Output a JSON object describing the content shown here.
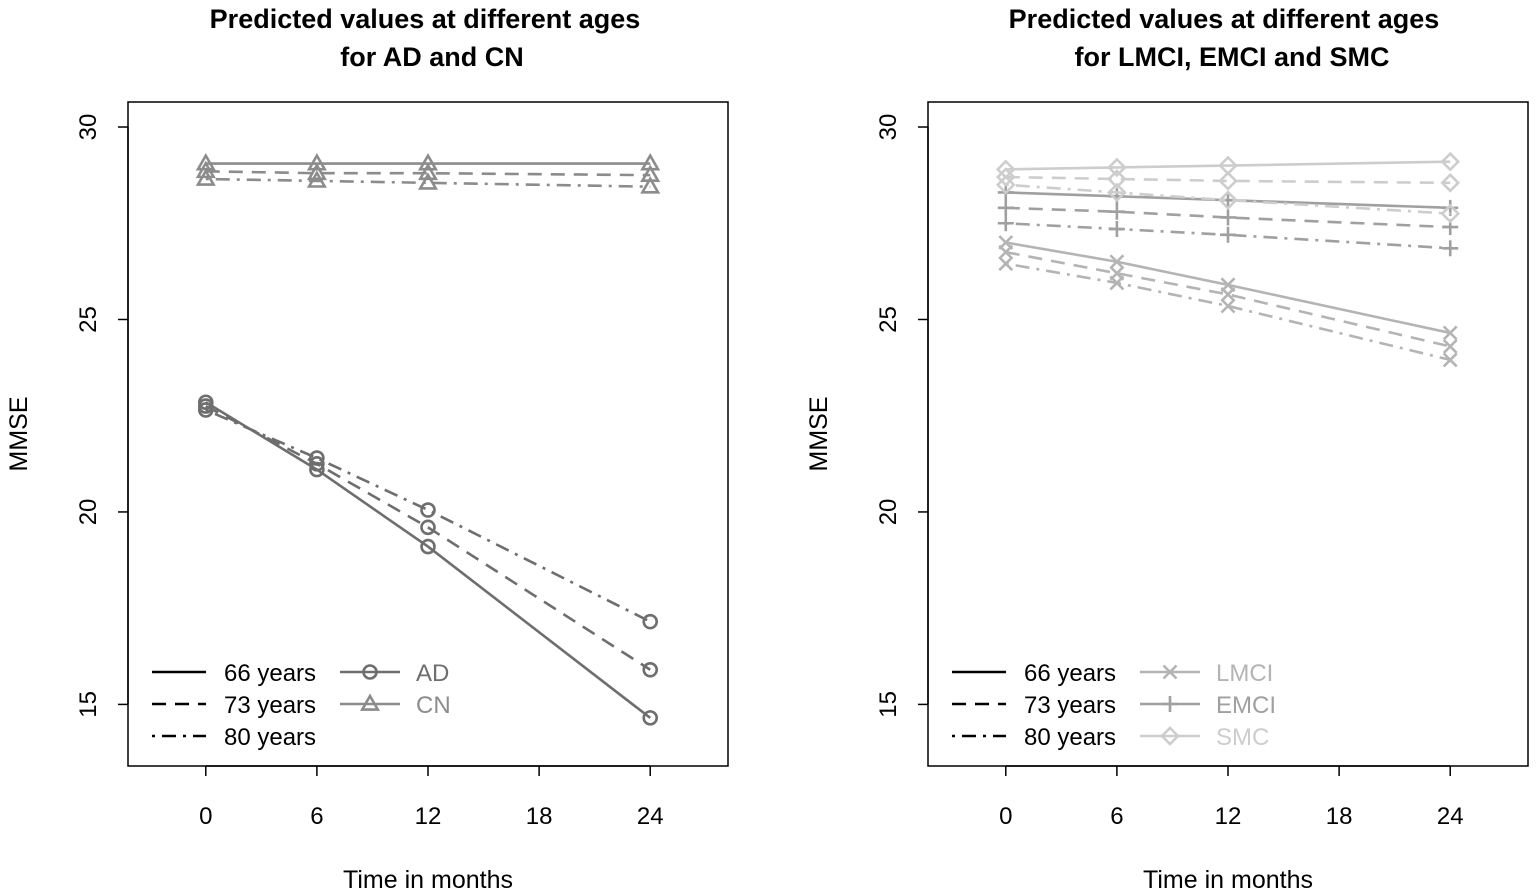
{
  "chart_data": [
    {
      "type": "line",
      "title": [
        "Predicted values at different ages",
        "for AD and CN"
      ],
      "xlabel": "Time in months",
      "ylabel": "MMSE",
      "x": [
        0,
        6,
        12,
        24
      ],
      "xticks": [
        0,
        6,
        12,
        18,
        24
      ],
      "xtick_labels": [
        "0",
        "6",
        "12",
        "18",
        "24"
      ],
      "yticks": [
        15,
        20,
        25,
        30
      ],
      "ytick_labels": [
        "15",
        "20",
        "25",
        "30"
      ],
      "xlim": [
        -4.2,
        28.2
      ],
      "ylim": [
        13.4,
        30.65
      ],
      "legend_position": "bottom-left",
      "age_legend": [
        {
          "label": "66 years",
          "linestyle": "solid"
        },
        {
          "label": "73 years",
          "linestyle": "dashed"
        },
        {
          "label": "80 years",
          "linestyle": "dashdot"
        }
      ],
      "group_legend": [
        {
          "label": "AD",
          "marker": "circle",
          "color": "#6e6e6e"
        },
        {
          "label": "CN",
          "marker": "triangle",
          "color": "#8c8c8c"
        }
      ],
      "series": [
        {
          "name": "AD 66 years",
          "group": "AD",
          "age": "66 years",
          "linestyle": "solid",
          "marker": "circle",
          "color": "#6e6e6e",
          "values": [
            22.85,
            21.1,
            19.1,
            14.65
          ]
        },
        {
          "name": "AD 73 years",
          "group": "AD",
          "age": "73 years",
          "linestyle": "dashed",
          "marker": "circle",
          "color": "#6e6e6e",
          "values": [
            22.75,
            21.25,
            19.6,
            15.9
          ]
        },
        {
          "name": "AD 80 years",
          "group": "AD",
          "age": "80 years",
          "linestyle": "dashdot",
          "marker": "circle",
          "color": "#6e6e6e",
          "values": [
            22.65,
            21.4,
            20.05,
            17.15
          ]
        },
        {
          "name": "CN 66 years",
          "group": "CN",
          "age": "66 years",
          "linestyle": "solid",
          "marker": "triangle",
          "color": "#8c8c8c",
          "values": [
            29.05,
            29.05,
            29.05,
            29.05
          ]
        },
        {
          "name": "CN 73 years",
          "group": "CN",
          "age": "73 years",
          "linestyle": "dashed",
          "marker": "triangle",
          "color": "#8c8c8c",
          "values": [
            28.85,
            28.8,
            28.8,
            28.75
          ]
        },
        {
          "name": "CN 80 years",
          "group": "CN",
          "age": "80 years",
          "linestyle": "dashdot",
          "marker": "triangle",
          "color": "#8c8c8c",
          "values": [
            28.65,
            28.6,
            28.55,
            28.45
          ]
        }
      ]
    },
    {
      "type": "line",
      "title": [
        "Predicted values at different ages",
        "for LMCI, EMCI and SMC"
      ],
      "xlabel": "Time in months",
      "ylabel": "MMSE",
      "x": [
        0,
        6,
        12,
        24
      ],
      "xticks": [
        0,
        6,
        12,
        18,
        24
      ],
      "xtick_labels": [
        "0",
        "6",
        "12",
        "18",
        "24"
      ],
      "yticks": [
        15,
        20,
        25,
        30
      ],
      "ytick_labels": [
        "15",
        "20",
        "25",
        "30"
      ],
      "xlim": [
        -4.2,
        28.2
      ],
      "ylim": [
        13.4,
        30.65
      ],
      "legend_position": "bottom-left",
      "age_legend": [
        {
          "label": "66 years",
          "linestyle": "solid"
        },
        {
          "label": "73 years",
          "linestyle": "dashed"
        },
        {
          "label": "80 years",
          "linestyle": "dashdot"
        }
      ],
      "group_legend": [
        {
          "label": "LMCI",
          "marker": "x",
          "color": "#b4b4b4"
        },
        {
          "label": "EMCI",
          "marker": "plus",
          "color": "#a0a0a0"
        },
        {
          "label": "SMC",
          "marker": "diamond",
          "color": "#cdcdcd"
        }
      ],
      "series": [
        {
          "name": "LMCI 66 years",
          "group": "LMCI",
          "age": "66 years",
          "linestyle": "solid",
          "marker": "x",
          "color": "#b4b4b4",
          "values": [
            27.0,
            26.5,
            25.9,
            24.65
          ]
        },
        {
          "name": "LMCI 73 years",
          "group": "LMCI",
          "age": "73 years",
          "linestyle": "dashed",
          "marker": "x",
          "color": "#b4b4b4",
          "values": [
            26.75,
            26.2,
            25.65,
            24.3
          ]
        },
        {
          "name": "LMCI 80 years",
          "group": "LMCI",
          "age": "80 years",
          "linestyle": "dashdot",
          "marker": "x",
          "color": "#b4b4b4",
          "values": [
            26.45,
            25.95,
            25.35,
            23.95
          ]
        },
        {
          "name": "EMCI 66 years",
          "group": "EMCI",
          "age": "66 years",
          "linestyle": "solid",
          "marker": "plus",
          "color": "#a0a0a0",
          "values": [
            28.3,
            28.2,
            28.1,
            27.9
          ]
        },
        {
          "name": "EMCI 73 years",
          "group": "EMCI",
          "age": "73 years",
          "linestyle": "dashed",
          "marker": "plus",
          "color": "#a0a0a0",
          "values": [
            27.9,
            27.8,
            27.65,
            27.4
          ]
        },
        {
          "name": "EMCI 80 years",
          "group": "EMCI",
          "age": "80 years",
          "linestyle": "dashdot",
          "marker": "plus",
          "color": "#a0a0a0",
          "values": [
            27.5,
            27.35,
            27.2,
            26.85
          ]
        },
        {
          "name": "SMC 66 years",
          "group": "SMC",
          "age": "66 years",
          "linestyle": "solid",
          "marker": "diamond",
          "color": "#cdcdcd",
          "values": [
            28.9,
            28.95,
            29.0,
            29.1
          ]
        },
        {
          "name": "SMC 73 years",
          "group": "SMC",
          "age": "73 years",
          "linestyle": "dashed",
          "marker": "diamond",
          "color": "#cdcdcd",
          "values": [
            28.7,
            28.65,
            28.6,
            28.55
          ]
        },
        {
          "name": "SMC 80 years",
          "group": "SMC",
          "age": "80 years",
          "linestyle": "dashdot",
          "marker": "diamond",
          "color": "#cdcdcd",
          "values": [
            28.5,
            28.3,
            28.1,
            27.75
          ]
        }
      ]
    }
  ]
}
